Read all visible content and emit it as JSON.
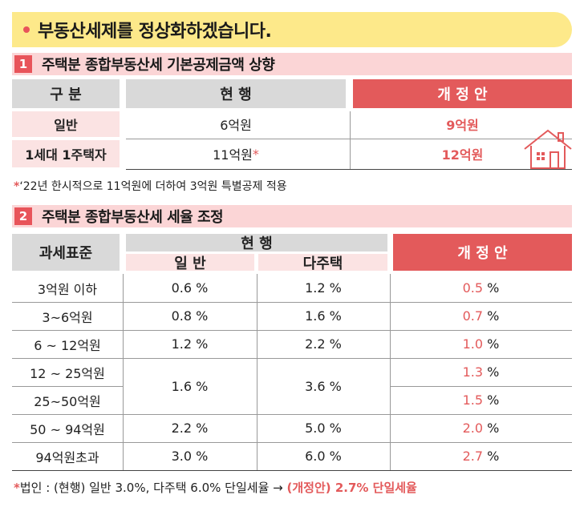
{
  "banner": {
    "title": "부동산세제를 정상화하겠습니다."
  },
  "section1": {
    "num": "1",
    "title": "주택분 종합부동산세 기본공제금액 상향",
    "headers": {
      "category": "구 분",
      "current": "현 행",
      "proposal": "개 정 안"
    },
    "rows": [
      {
        "label": "일반",
        "current": "6억원",
        "proposal": "9억원"
      },
      {
        "label": "1세대 1주택자",
        "current": "11억원",
        "current_mark": "*",
        "proposal": "12억원"
      }
    ],
    "note": {
      "mark": "*",
      "text": "‘22년 한시적으로 11억원에 더하여 3억원 특별공제 적용"
    },
    "icons": {
      "house": "house-icon"
    }
  },
  "section2": {
    "num": "2",
    "title": "주택분 종합부동산세 세율 조정",
    "headers": {
      "tax_base": "과세표준",
      "current": "현 행",
      "general": "일 반",
      "multi": "다주택",
      "proposal": "개 정 안"
    },
    "rows": [
      {
        "base": "3억원 이하",
        "general": "0.6",
        "multi": "1.2",
        "proposal": "0.5"
      },
      {
        "base": "3~6억원",
        "general": "0.8",
        "multi": "1.6",
        "proposal": "0.7"
      },
      {
        "base": "6 ~ 12억원",
        "general": "1.2",
        "multi": "2.2",
        "proposal": "1.0"
      },
      {
        "base": "12 ~ 25억원",
        "general": "1.6",
        "multi": "3.6",
        "proposal": "1.3"
      },
      {
        "base": "25~50억원",
        "proposal": "1.5"
      },
      {
        "base": "50 ~ 94억원",
        "general": "2.2",
        "multi": "5.0",
        "proposal": "2.0"
      },
      {
        "base": "94억원초과",
        "general": "3.0",
        "multi": "6.0",
        "proposal": "2.7"
      }
    ],
    "unit": "%",
    "note": {
      "mark": "*",
      "prefix": "법인 : (현행) 일반 3.0%, 다주택 6.0% 단일세율 → ",
      "highlight": "(개정안) 2.7% 단일세율"
    }
  },
  "colors": {
    "accent": "#e35a5b",
    "banner": "#fde98a",
    "section_bar": "#fbd5d6",
    "gray_header": "#d9d9d9",
    "pink_header": "#fbe3e3"
  }
}
